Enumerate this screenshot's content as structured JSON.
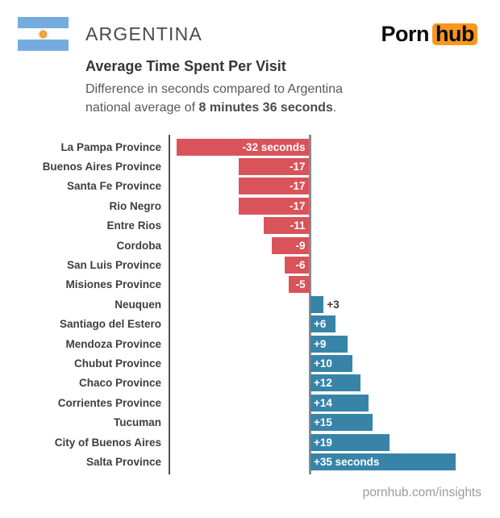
{
  "header": {
    "country": "ARGENTINA",
    "logo": {
      "word1": "Porn",
      "word2": "hub"
    },
    "flag_colors": {
      "stripe_blue": "#74acdf",
      "sun_gold": "#efa73e"
    }
  },
  "title": "Average Time Spent Per Visit",
  "subtitle": {
    "line1": "Difference in seconds compared to Argentina",
    "line2_prefix": "national average of ",
    "line2_bold": "8 minutes 36 seconds",
    "line2_suffix": "."
  },
  "chart_data": {
    "type": "bar",
    "orientation": "horizontal",
    "value_unit": "seconds",
    "baseline_value": 0,
    "xlim": [
      -34,
      46
    ],
    "grid": false,
    "legend": false,
    "categories": [
      "La Pampa Province",
      "Buenos Aires Province",
      "Santa Fe Province",
      "Rio Negro",
      "Entre Rios",
      "Cordoba",
      "San Luis Province",
      "Misiones Province",
      "Neuquen",
      "Santiago del Estero",
      "Mendoza Province",
      "Chubut Province",
      "Chaco Province",
      "Corrientes Province",
      "Tucuman",
      "City of Buenos Aires",
      "Salta Province"
    ],
    "values": [
      -32,
      -17,
      -17,
      -17,
      -11,
      -9,
      -6,
      -5,
      3,
      6,
      9,
      10,
      12,
      14,
      15,
      19,
      35
    ],
    "bar_labels": [
      "-32 seconds",
      "-17",
      "-17",
      "-17",
      "-11",
      "-9",
      "-6",
      "-5",
      "+3",
      "+6",
      "+9",
      "+10",
      "+12",
      "+14",
      "+15",
      "+19",
      "+35 seconds"
    ],
    "negative_color": "#d9545a",
    "positive_color": "#3884a9"
  },
  "colors": {
    "logo_orange": "#f7971d",
    "category_axis": "#4f4f4f",
    "zero_line": "#8a8a8a",
    "category_label": "#3e3e3e",
    "bar_label_inside": "#ffffff"
  },
  "footer": {
    "url": "pornhub.com/insights"
  }
}
